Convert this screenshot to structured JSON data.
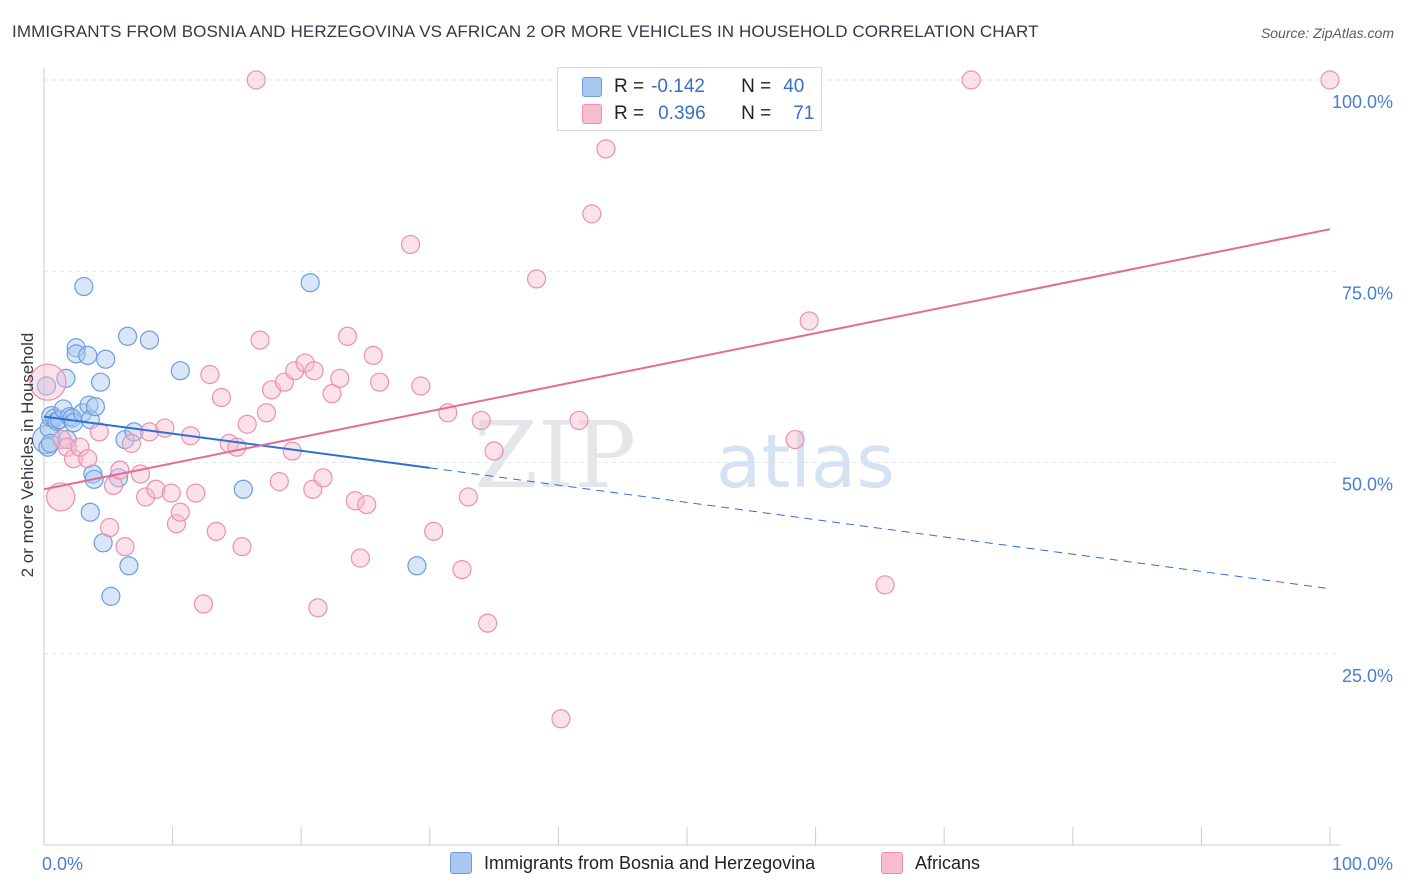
{
  "title": "IMMIGRANTS FROM BOSNIA AND HERZEGOVINA VS AFRICAN 2 OR MORE VEHICLES IN HOUSEHOLD CORRELATION CHART",
  "source": "Source: ZipAtlas.com",
  "watermark": {
    "zip": "ZIP",
    "atlas": "atlas"
  },
  "legend": {
    "r_label": "R =",
    "n_label": "N =",
    "rows": [
      {
        "r": "-0.142",
        "n": "40"
      },
      {
        "r": "0.396",
        "n": "71"
      }
    ]
  },
  "colors": {
    "blue_fill": "#a9c8f0",
    "blue_stroke": "#6b9ee0",
    "blue_line": "#2e6fd6",
    "pink_fill": "#f6bcd0",
    "pink_stroke": "#ee8fb0",
    "pink_line": "#e46b95",
    "tick_label": "#4a7ed0",
    "grid": "#e3e6ea"
  },
  "chart_data": {
    "type": "scatter",
    "title": "IMMIGRANTS FROM BOSNIA AND HERZEGOVINA VS AFRICAN 2 OR MORE VEHICLES IN HOUSEHOLD CORRELATION CHART",
    "xlabel": "",
    "ylabel": "2 or more Vehicles in Household",
    "xlim": [
      0,
      100
    ],
    "ylim": [
      0,
      105
    ],
    "x_tick_labels": [
      "0.0%",
      "100.0%"
    ],
    "y_ticks": [
      25,
      50,
      75,
      100
    ],
    "y_tick_labels": [
      "25.0%",
      "50.0%",
      "75.0%",
      "100.0%"
    ],
    "x_minor_ticks": [
      0,
      10,
      20,
      30,
      40,
      50,
      60,
      70,
      80,
      90,
      100
    ],
    "grid": true,
    "legend_position": "top-center",
    "series": [
      {
        "name": "Immigrants from Bosnia and Herzegovina",
        "color": "blue",
        "r": -0.142,
        "n": 40,
        "trend": {
          "x0": 0,
          "y0": 56,
          "x_solid_end": 30,
          "y_solid_end": 49.3,
          "x1": 100,
          "y1": 33.5
        },
        "points": [
          [
            0.2,
            53.0,
            14
          ],
          [
            0.3,
            52.0,
            9
          ],
          [
            0.4,
            54.5,
            9
          ],
          [
            0.5,
            52.5,
            9
          ],
          [
            0.6,
            56.0,
            10
          ],
          [
            0.8,
            55.8,
            9
          ],
          [
            1.0,
            55.4,
            9
          ],
          [
            1.2,
            55.6,
            9
          ],
          [
            1.5,
            57.0,
            9
          ],
          [
            1.7,
            61.0,
            9
          ],
          [
            1.8,
            53.0,
            9
          ],
          [
            2.0,
            56.0,
            9
          ],
          [
            2.2,
            55.8,
            9
          ],
          [
            2.3,
            55.2,
            9
          ],
          [
            2.5,
            65.0,
            9
          ],
          [
            2.5,
            64.2,
            9
          ],
          [
            3.0,
            56.5,
            9
          ],
          [
            3.1,
            73.0,
            9
          ],
          [
            3.4,
            64.0,
            9
          ],
          [
            3.5,
            57.5,
            9
          ],
          [
            3.6,
            55.6,
            9
          ],
          [
            3.6,
            43.5,
            9
          ],
          [
            3.8,
            48.5,
            9
          ],
          [
            3.9,
            47.8,
            9
          ],
          [
            4.0,
            57.3,
            9
          ],
          [
            4.4,
            60.5,
            9
          ],
          [
            4.6,
            39.5,
            9
          ],
          [
            4.8,
            63.5,
            9
          ],
          [
            5.2,
            32.5,
            9
          ],
          [
            5.8,
            48.0,
            9
          ],
          [
            6.3,
            53.0,
            9
          ],
          [
            6.5,
            66.5,
            9
          ],
          [
            6.6,
            36.5,
            9
          ],
          [
            7.0,
            54.0,
            9
          ],
          [
            8.2,
            66.0,
            9
          ],
          [
            10.6,
            62.0,
            9
          ],
          [
            15.5,
            46.5,
            9
          ],
          [
            20.7,
            73.5,
            9
          ],
          [
            29.0,
            36.5,
            9
          ],
          [
            0.2,
            60.0,
            9
          ]
        ]
      },
      {
        "name": "Africans",
        "color": "pink",
        "r": 0.396,
        "n": 71,
        "trend": {
          "x0": 0,
          "y0": 46.5,
          "x1": 100,
          "y1": 80.5
        },
        "points": [
          [
            0.3,
            60.5,
            18
          ],
          [
            1.3,
            45.5,
            14
          ],
          [
            1.4,
            53.0,
            9
          ],
          [
            1.8,
            52.0,
            9
          ],
          [
            2.3,
            50.5,
            9
          ],
          [
            2.8,
            52.0,
            9
          ],
          [
            3.4,
            50.5,
            9
          ],
          [
            4.3,
            54.0,
            9
          ],
          [
            5.1,
            41.5,
            9
          ],
          [
            5.4,
            47.0,
            9
          ],
          [
            5.9,
            49.0,
            9
          ],
          [
            6.3,
            39.0,
            9
          ],
          [
            6.8,
            52.5,
            9
          ],
          [
            7.5,
            48.5,
            9
          ],
          [
            7.9,
            45.5,
            9
          ],
          [
            8.2,
            54.0,
            9
          ],
          [
            8.7,
            46.5,
            9
          ],
          [
            9.4,
            54.5,
            9
          ],
          [
            9.9,
            46.0,
            9
          ],
          [
            10.3,
            42.0,
            9
          ],
          [
            10.6,
            43.5,
            9
          ],
          [
            11.4,
            53.5,
            9
          ],
          [
            11.8,
            46.0,
            9
          ],
          [
            12.4,
            31.5,
            9
          ],
          [
            12.9,
            61.5,
            9
          ],
          [
            13.4,
            41.0,
            9
          ],
          [
            13.8,
            58.5,
            9
          ],
          [
            14.4,
            52.5,
            9
          ],
          [
            15.0,
            52.0,
            9
          ],
          [
            15.4,
            39.0,
            9
          ],
          [
            15.8,
            55.0,
            9
          ],
          [
            16.5,
            100.0,
            9
          ],
          [
            16.8,
            66.0,
            9
          ],
          [
            17.3,
            56.5,
            9
          ],
          [
            17.7,
            59.5,
            9
          ],
          [
            18.3,
            47.5,
            9
          ],
          [
            18.7,
            60.5,
            9
          ],
          [
            19.3,
            51.5,
            9
          ],
          [
            19.5,
            62.0,
            9
          ],
          [
            20.3,
            63.0,
            9
          ],
          [
            20.9,
            46.5,
            9
          ],
          [
            21.3,
            31.0,
            9
          ],
          [
            21.7,
            48.0,
            9
          ],
          [
            22.4,
            59.0,
            9
          ],
          [
            23.0,
            61.0,
            9
          ],
          [
            23.6,
            66.5,
            9
          ],
          [
            24.2,
            45.0,
            9
          ],
          [
            24.6,
            37.5,
            9
          ],
          [
            25.1,
            44.5,
            9
          ],
          [
            25.6,
            64.0,
            9
          ],
          [
            26.1,
            60.5,
            9
          ],
          [
            28.5,
            78.5,
            9
          ],
          [
            29.3,
            60.0,
            9
          ],
          [
            30.3,
            41.0,
            9
          ],
          [
            31.4,
            56.5,
            9
          ],
          [
            32.5,
            36.0,
            9
          ],
          [
            33.0,
            45.5,
            9
          ],
          [
            34.0,
            55.5,
            9
          ],
          [
            34.5,
            29.0,
            9
          ],
          [
            35.0,
            51.5,
            9
          ],
          [
            38.3,
            74.0,
            9
          ],
          [
            40.2,
            16.5,
            9
          ],
          [
            41.6,
            55.5,
            9
          ],
          [
            42.6,
            82.5,
            9
          ],
          [
            43.7,
            91.0,
            9
          ],
          [
            58.4,
            53.0,
            9
          ],
          [
            59.5,
            68.5,
            9
          ],
          [
            65.4,
            34.0,
            9
          ],
          [
            72.1,
            100.0,
            9
          ],
          [
            100.0,
            100.0,
            9
          ],
          [
            21.0,
            62.0,
            9
          ]
        ]
      }
    ]
  },
  "bottom_legend": [
    {
      "label": "Immigrants from Bosnia and Herzegovina"
    },
    {
      "label": "Africans"
    }
  ]
}
